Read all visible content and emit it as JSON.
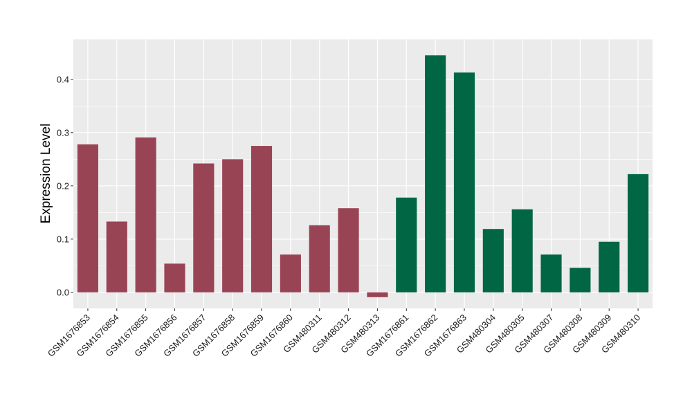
{
  "chart_data": {
    "type": "bar",
    "title": "",
    "xlabel": "",
    "ylabel": "Expression Level",
    "ylim": [
      -0.03,
      0.475
    ],
    "yticks": [
      0.0,
      0.1,
      0.2,
      0.3,
      0.4
    ],
    "ytick_labels": [
      "0.0",
      "0.1",
      "0.2",
      "0.3",
      "0.4"
    ],
    "grid": true,
    "categories": [
      "GSM1676853",
      "GSM1676854",
      "GSM1676855",
      "GSM1676856",
      "GSM1676857",
      "GSM1676858",
      "GSM1676859",
      "GSM1676860",
      "GSM480311",
      "GSM480312",
      "GSM480313",
      "GSM1676861",
      "GSM1676862",
      "GSM1676863",
      "GSM480304",
      "GSM480305",
      "GSM480307",
      "GSM480308",
      "GSM480309",
      "GSM480310"
    ],
    "values": [
      0.278,
      0.133,
      0.291,
      0.054,
      0.242,
      0.25,
      0.275,
      0.071,
      0.126,
      0.158,
      -0.009,
      0.178,
      0.445,
      0.413,
      0.119,
      0.156,
      0.071,
      0.046,
      0.095,
      0.222
    ],
    "groups": [
      0,
      0,
      0,
      0,
      0,
      0,
      0,
      0,
      0,
      0,
      0,
      1,
      1,
      1,
      1,
      1,
      1,
      1,
      1,
      1
    ],
    "group_colors": [
      "#994455",
      "#006644"
    ],
    "panel_background": "#ebebeb",
    "grid_color": "#ffffff"
  }
}
